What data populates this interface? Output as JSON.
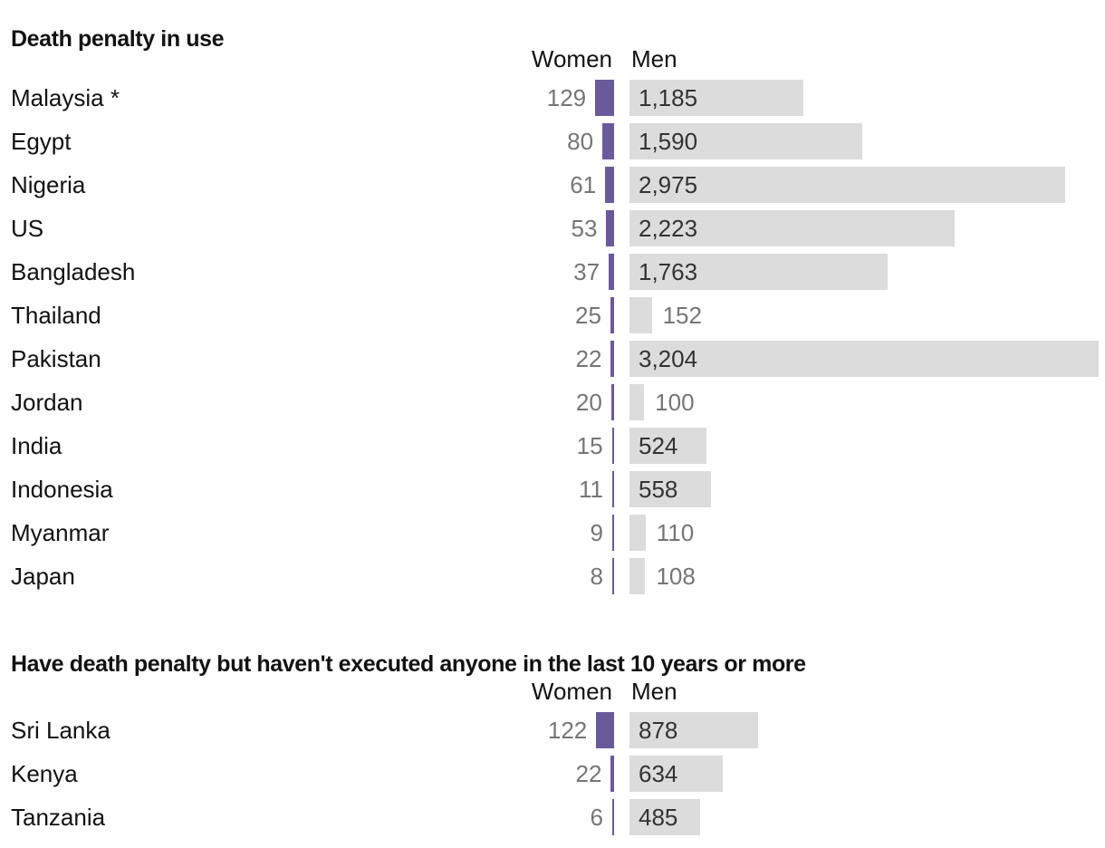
{
  "colors": {
    "women_bar": "#6a5a9b",
    "men_bar": "#dcdcdc",
    "text": "#121212",
    "value_muted": "#767676",
    "value_dark": "#333333",
    "background": "#ffffff"
  },
  "chart_data": [
    {
      "type": "bar",
      "orientation": "diverging-horizontal",
      "title": "Death penalty in use",
      "legend": [
        "Women",
        "Men"
      ],
      "footnote_marker": "*",
      "rows": [
        {
          "country": "Malaysia *",
          "women": 129,
          "women_label": "129",
          "men": 1185,
          "men_label": "1,185"
        },
        {
          "country": "Egypt",
          "women": 80,
          "women_label": "80",
          "men": 1590,
          "men_label": "1,590"
        },
        {
          "country": "Nigeria",
          "women": 61,
          "women_label": "61",
          "men": 2975,
          "men_label": "2,975"
        },
        {
          "country": "US",
          "women": 53,
          "women_label": "53",
          "men": 2223,
          "men_label": "2,223"
        },
        {
          "country": "Bangladesh",
          "women": 37,
          "women_label": "37",
          "men": 1763,
          "men_label": "1,763"
        },
        {
          "country": "Thailand",
          "women": 25,
          "women_label": "25",
          "men": 152,
          "men_label": "152"
        },
        {
          "country": "Pakistan",
          "women": 22,
          "women_label": "22",
          "men": 3204,
          "men_label": "3,204"
        },
        {
          "country": "Jordan",
          "women": 20,
          "women_label": "20",
          "men": 100,
          "men_label": "100"
        },
        {
          "country": "India",
          "women": 15,
          "women_label": "15",
          "men": 524,
          "men_label": "524"
        },
        {
          "country": "Indonesia",
          "women": 11,
          "women_label": "11",
          "men": 558,
          "men_label": "558"
        },
        {
          "country": "Myanmar",
          "women": 9,
          "women_label": "9",
          "men": 110,
          "men_label": "110"
        },
        {
          "country": "Japan",
          "women": 8,
          "women_label": "8",
          "men": 108,
          "men_label": "108"
        }
      ]
    },
    {
      "type": "bar",
      "orientation": "diverging-horizontal",
      "title": "Have death penalty but haven't executed anyone in the last 10 years or more",
      "legend": [
        "Women",
        "Men"
      ],
      "rows": [
        {
          "country": "Sri Lanka",
          "women": 122,
          "women_label": "122",
          "men": 878,
          "men_label": "878"
        },
        {
          "country": "Kenya",
          "women": 22,
          "women_label": "22",
          "men": 634,
          "men_label": "634"
        },
        {
          "country": "Tanzania",
          "women": 6,
          "women_label": "6",
          "men": 485,
          "men_label": "485"
        }
      ]
    }
  ]
}
